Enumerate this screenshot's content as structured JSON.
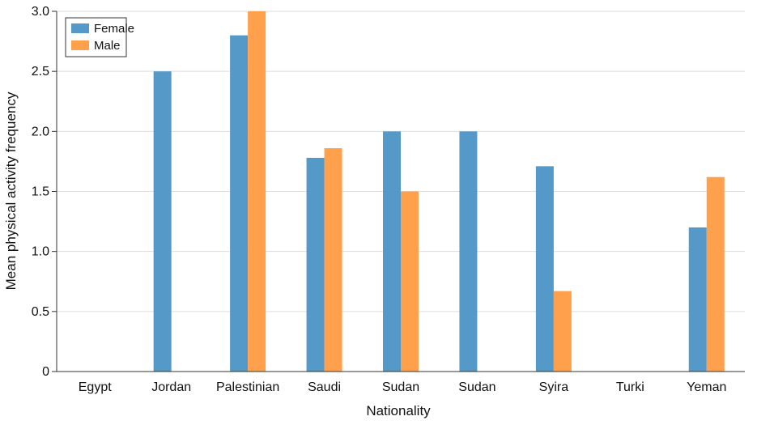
{
  "chart_data": {
    "type": "bar",
    "title": "",
    "xlabel": "Nationality",
    "ylabel": "Mean physical activity frequency",
    "categories": [
      "Egypt",
      "Jordan",
      "Palestinian",
      "Saudi",
      "Sudan",
      "Sudan",
      "Syira",
      "Turki",
      "Yeman"
    ],
    "series": [
      {
        "name": "Female",
        "color": "#5499c7",
        "values": [
          null,
          2.5,
          2.8,
          1.78,
          2.0,
          2.0,
          1.71,
          null,
          1.2
        ]
      },
      {
        "name": "Male",
        "color": "#ffa04d",
        "values": [
          null,
          null,
          3.0,
          1.86,
          1.5,
          null,
          0.67,
          null,
          1.62
        ]
      }
    ],
    "ylim": [
      0,
      3.0
    ],
    "yticks": [
      "0",
      "0.5",
      "1.0",
      "1.5",
      "2.0",
      "2.5",
      "3.0"
    ],
    "grid": true,
    "legend_position": "top-left"
  }
}
